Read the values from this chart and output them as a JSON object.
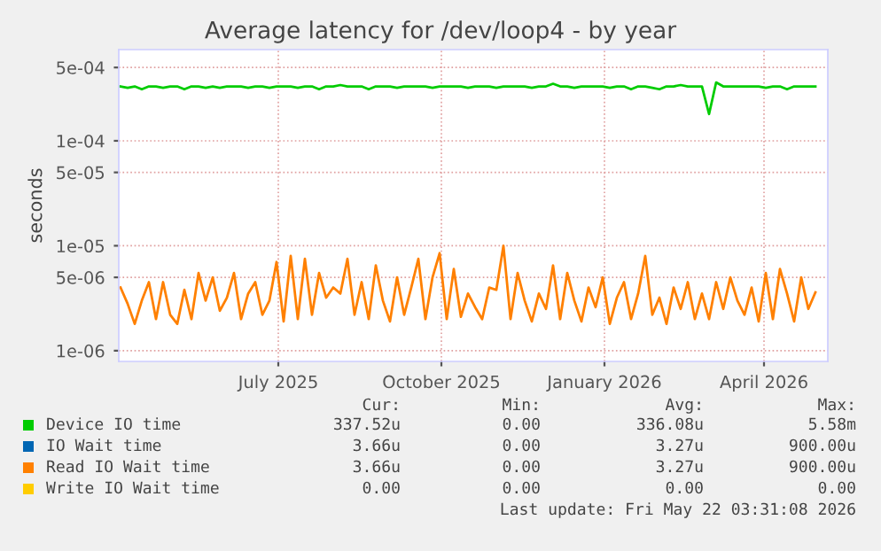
{
  "chart_data": {
    "type": "line",
    "title": "Average latency for /dev/loop4 - by year",
    "ylabel": "seconds",
    "log": "y",
    "grid": true,
    "legend": "bottom",
    "marker": "none",
    "line_style": "solid",
    "xlim": [
      "2025-04-17",
      "2026-05-22"
    ],
    "xticks": [
      {
        "value": "2025-07-16",
        "label": "July 2025"
      },
      {
        "value": "2025-10-16",
        "label": "October 2025"
      },
      {
        "value": "2026-01-16",
        "label": "January 2026"
      },
      {
        "value": "2026-04-16",
        "label": "April 2026"
      }
    ],
    "ylim": [
      7.9e-07,
      0.00074
    ],
    "yticks": [
      {
        "value": 0.0005,
        "label": "5e-04"
      },
      {
        "value": 0.0001,
        "label": "1e-04"
      },
      {
        "value": 5e-05,
        "label": "5e-05"
      },
      {
        "value": 1e-05,
        "label": "1e-05"
      },
      {
        "value": 5e-06,
        "label": "5e-06"
      },
      {
        "value": 1e-06,
        "label": "1e-06"
      }
    ],
    "x": [
      "2025-04-18",
      "2025-04-22",
      "2025-04-26",
      "2025-04-30",
      "2025-05-04",
      "2025-05-08",
      "2025-05-12",
      "2025-05-16",
      "2025-05-20",
      "2025-05-24",
      "2025-05-28",
      "2025-06-01",
      "2025-06-05",
      "2025-06-09",
      "2025-06-13",
      "2025-06-17",
      "2025-06-21",
      "2025-06-25",
      "2025-06-29",
      "2025-07-03",
      "2025-07-07",
      "2025-07-11",
      "2025-07-15",
      "2025-07-19",
      "2025-07-23",
      "2025-07-27",
      "2025-07-31",
      "2025-08-04",
      "2025-08-08",
      "2025-08-12",
      "2025-08-16",
      "2025-08-20",
      "2025-08-24",
      "2025-08-28",
      "2025-09-01",
      "2025-09-05",
      "2025-09-09",
      "2025-09-13",
      "2025-09-17",
      "2025-09-21",
      "2025-09-25",
      "2025-09-29",
      "2025-10-03",
      "2025-10-07",
      "2025-10-11",
      "2025-10-15",
      "2025-10-19",
      "2025-10-23",
      "2025-10-27",
      "2025-10-31",
      "2025-11-04",
      "2025-11-08",
      "2025-11-12",
      "2025-11-16",
      "2025-11-20",
      "2025-11-24",
      "2025-11-28",
      "2025-12-02",
      "2025-12-06",
      "2025-12-10",
      "2025-12-14",
      "2025-12-18",
      "2025-12-22",
      "2025-12-26",
      "2025-12-30",
      "2026-01-03",
      "2026-01-07",
      "2026-01-11",
      "2026-01-15",
      "2026-01-19",
      "2026-01-23",
      "2026-01-27",
      "2026-01-31",
      "2026-02-04",
      "2026-02-08",
      "2026-02-12",
      "2026-02-16",
      "2026-02-20",
      "2026-02-24",
      "2026-02-28",
      "2026-03-04",
      "2026-03-08",
      "2026-03-12",
      "2026-03-16",
      "2026-03-20",
      "2026-03-24",
      "2026-03-28",
      "2026-04-01",
      "2026-04-05",
      "2026-04-09",
      "2026-04-13",
      "2026-04-17",
      "2026-04-21",
      "2026-04-25",
      "2026-04-29",
      "2026-05-03",
      "2026-05-07",
      "2026-05-11",
      "2026-05-15"
    ],
    "series": [
      {
        "name": "Device IO time",
        "color": "#00cc00",
        "values": [
          0.00033,
          0.00032,
          0.00033,
          0.00031,
          0.00033,
          0.00033,
          0.00032,
          0.00033,
          0.00033,
          0.00031,
          0.00033,
          0.00033,
          0.00032,
          0.00033,
          0.00032,
          0.00033,
          0.00033,
          0.00033,
          0.00032,
          0.00033,
          0.00033,
          0.00032,
          0.00033,
          0.00033,
          0.00033,
          0.00032,
          0.00033,
          0.00033,
          0.00031,
          0.00033,
          0.00033,
          0.00034,
          0.00033,
          0.00033,
          0.00033,
          0.00031,
          0.00033,
          0.00033,
          0.00033,
          0.00032,
          0.00033,
          0.00033,
          0.00033,
          0.00033,
          0.00032,
          0.00033,
          0.00033,
          0.00033,
          0.00033,
          0.00032,
          0.00033,
          0.00033,
          0.00033,
          0.00032,
          0.00033,
          0.00033,
          0.00033,
          0.00033,
          0.00032,
          0.00033,
          0.00033,
          0.00035,
          0.00033,
          0.00033,
          0.00032,
          0.00033,
          0.00033,
          0.00033,
          0.00033,
          0.00032,
          0.00033,
          0.00033,
          0.00031,
          0.00033,
          0.00033,
          0.00032,
          0.00031,
          0.00033,
          0.00033,
          0.00034,
          0.00033,
          0.00033,
          0.00033,
          0.00018,
          0.00036,
          0.00033,
          0.00033,
          0.00033,
          0.00033,
          0.00033,
          0.00033,
          0.00032,
          0.00033,
          0.00033,
          0.00031,
          0.00033,
          0.00033,
          0.00033,
          0.00033
        ]
      },
      {
        "name": "IO Wait time",
        "color": "#0066b3",
        "values": [
          null,
          null,
          null,
          null,
          null,
          null,
          null,
          null,
          null,
          null,
          null,
          null,
          null,
          null,
          null,
          null,
          null,
          null,
          null,
          null,
          null,
          null,
          null,
          null,
          null,
          null,
          null,
          null,
          null,
          null,
          null,
          null,
          null,
          null,
          null,
          null,
          null,
          null,
          null,
          null,
          null,
          null,
          null,
          null,
          null,
          null,
          null,
          null,
          null,
          null,
          null,
          null,
          null,
          null,
          null,
          null,
          null,
          null,
          null,
          null,
          null,
          null,
          null,
          null,
          null,
          null,
          null,
          null,
          null,
          null,
          null,
          null,
          null,
          null,
          null,
          null,
          null,
          null,
          null,
          null,
          null,
          null,
          null,
          null,
          null,
          null,
          null,
          null,
          null,
          null,
          null,
          null,
          null,
          null,
          null,
          null,
          null,
          null,
          null
        ]
      },
      {
        "name": "Read IO Wait time",
        "color": "#ff8000",
        "values": [
          4e-06,
          2.8e-06,
          1.8e-06,
          3e-06,
          4.5e-06,
          2e-06,
          4.5e-06,
          2.2e-06,
          1.8e-06,
          3.8e-06,
          2e-06,
          5.5e-06,
          3e-06,
          5e-06,
          2.4e-06,
          3.2e-06,
          5.5e-06,
          2e-06,
          3.5e-06,
          4.5e-06,
          2.2e-06,
          3e-06,
          7e-06,
          1.9e-06,
          8e-06,
          2e-06,
          7.5e-06,
          2.2e-06,
          5.5e-06,
          3.2e-06,
          4e-06,
          3.5e-06,
          7.5e-06,
          2.2e-06,
          4.5e-06,
          2e-06,
          6.5e-06,
          3e-06,
          1.9e-06,
          5e-06,
          2.2e-06,
          4e-06,
          7.5e-06,
          2e-06,
          5e-06,
          8.5e-06,
          2e-06,
          6e-06,
          2.1e-06,
          3.5e-06,
          2.6e-06,
          2e-06,
          4e-06,
          3.8e-06,
          1e-05,
          2e-06,
          5.5e-06,
          3e-06,
          1.9e-06,
          3.5e-06,
          2.5e-06,
          6.5e-06,
          2e-06,
          5.5e-06,
          3e-06,
          1.9e-06,
          4e-06,
          2.6e-06,
          5e-06,
          1.8e-06,
          3.2e-06,
          4.5e-06,
          2e-06,
          3.5e-06,
          8e-06,
          2.2e-06,
          3.2e-06,
          1.8e-06,
          4e-06,
          2.5e-06,
          4.5e-06,
          2e-06,
          3.5e-06,
          2e-06,
          4.5e-06,
          2.5e-06,
          5e-06,
          3e-06,
          2.2e-06,
          4e-06,
          1.9e-06,
          5.5e-06,
          2e-06,
          6e-06,
          3.5e-06,
          1.9e-06,
          5e-06,
          2.5e-06,
          3.6e-06
        ]
      },
      {
        "name": "Write IO Wait time",
        "color": "#ffcc00",
        "values": [
          null,
          null,
          null,
          null,
          null,
          null,
          null,
          null,
          null,
          null,
          null,
          null,
          null,
          null,
          null,
          null,
          null,
          null,
          null,
          null,
          null,
          null,
          null,
          null,
          null,
          null,
          null,
          null,
          null,
          null,
          null,
          null,
          null,
          null,
          null,
          null,
          null,
          null,
          null,
          null,
          null,
          null,
          null,
          null,
          null,
          null,
          null,
          null,
          null,
          null,
          null,
          null,
          null,
          null,
          null,
          null,
          null,
          null,
          null,
          null,
          null,
          null,
          null,
          null,
          null,
          null,
          null,
          null,
          null,
          null,
          null,
          null,
          null,
          null,
          null,
          null,
          null,
          null,
          null,
          null,
          null,
          null,
          null,
          null,
          null,
          null,
          null,
          null,
          null,
          null,
          null,
          null,
          null,
          null,
          null,
          null,
          null,
          null,
          null
        ]
      }
    ],
    "annotations": [
      "Cur:",
      "Min:",
      "Avg:",
      "Max:",
      "337.52u",
      "0.00",
      "336.08u",
      "5.58m",
      "3.66u",
      "0.00",
      "3.27u",
      "900.00u",
      "3.66u",
      "0.00",
      "3.27u",
      "900.00u",
      "0.00",
      "0.00",
      "0.00",
      "0.00",
      "Last update: Fri May 22 03:31:08 2026"
    ]
  }
}
